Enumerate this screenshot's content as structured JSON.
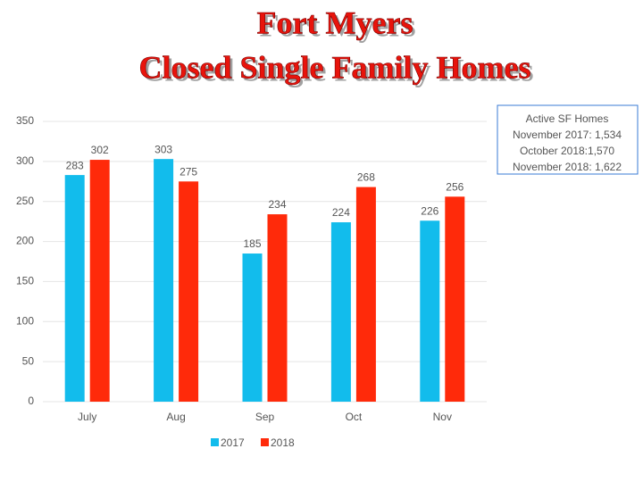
{
  "chart_data": {
    "type": "bar",
    "title": "Fort Myers",
    "subtitle": "Closed Single Family Homes",
    "categories": [
      "July",
      "Aug",
      "Sep",
      "Oct",
      "Nov"
    ],
    "series": [
      {
        "name": "2017",
        "color": "#12bcec",
        "values": [
          283,
          303,
          185,
          224,
          226
        ]
      },
      {
        "name": "2018",
        "color": "#ff2a0a",
        "values": [
          302,
          275,
          234,
          268,
          256
        ]
      }
    ],
    "ylim": [
      0,
      350
    ],
    "yticks": [
      0,
      50,
      100,
      150,
      200,
      250,
      300,
      350
    ],
    "grid": true,
    "legend": "bottom",
    "annotations": [
      {
        "text": "Active SF Homes",
        "color": "#000000"
      },
      {
        "text": "November 2017: 1,534",
        "color": "#000000"
      },
      {
        "text": "October 2018:1,570",
        "color": "#000000"
      },
      {
        "text": "November 2018: 1,622",
        "color": "#ff2a0a"
      }
    ]
  }
}
